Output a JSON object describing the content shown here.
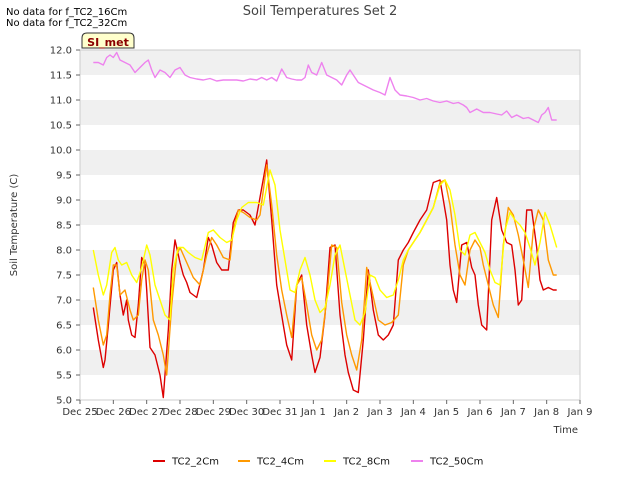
{
  "notes": [
    "No data for f_TC2_16Cm",
    "No data for f_TC2_32Cm"
  ],
  "badge": "SI_met",
  "chart_data": {
    "type": "line",
    "title": "Soil Temperatures Set 2",
    "xlabel": "Time",
    "ylabel": "Soil Temperature (C)",
    "ylim": [
      5.0,
      12.0
    ],
    "yticks": [
      5.0,
      5.5,
      6.0,
      6.5,
      7.0,
      7.5,
      8.0,
      8.5,
      9.0,
      9.5,
      10.0,
      10.5,
      11.0,
      11.5,
      12.0
    ],
    "xlim": [
      0,
      15
    ],
    "xticks": [
      0,
      1,
      2,
      3,
      4,
      5,
      6,
      7,
      8,
      9,
      10,
      11,
      12,
      13,
      14,
      15
    ],
    "xtick_labels": [
      "Dec 25",
      "Dec 26",
      "Dec 27",
      "Dec 28",
      "Dec 29",
      "Dec 30",
      "Dec 31",
      "Jan 1",
      "Jan 2",
      "Jan 3",
      "Jan 4",
      "Jan 5",
      "Jan 6",
      "Jan 7",
      "Jan 8",
      "Jan 9"
    ],
    "grid": "horizontal bands",
    "legend_position": "bottom",
    "series": [
      {
        "name": "TC2_2Cm",
        "color": "#dd0000",
        "x": [
          0.4,
          0.55,
          0.7,
          0.75,
          0.85,
          1.0,
          1.1,
          1.2,
          1.3,
          1.4,
          1.45,
          1.55,
          1.65,
          1.75,
          1.85,
          1.95,
          2.0,
          2.1,
          2.25,
          2.4,
          2.5,
          2.65,
          2.75,
          2.85,
          3.0,
          3.1,
          3.2,
          3.3,
          3.5,
          3.7,
          3.85,
          3.95,
          4.1,
          4.25,
          4.45,
          4.6,
          4.75,
          4.9,
          5.1,
          5.25,
          5.4,
          5.6,
          5.75,
          5.9,
          6.0,
          6.1,
          6.2,
          6.35,
          6.5,
          6.65,
          6.8,
          6.95,
          7.05,
          7.2,
          7.35,
          7.5,
          7.65,
          7.8,
          7.95,
          8.05,
          8.2,
          8.35,
          8.5,
          8.65,
          8.8,
          8.95,
          9.1,
          9.25,
          9.4,
          9.55,
          9.7,
          9.85,
          10.0,
          10.2,
          10.4,
          10.6,
          10.8,
          11.0,
          11.1,
          11.2,
          11.3,
          11.45,
          11.6,
          11.75,
          11.85,
          11.95,
          12.05,
          12.2,
          12.35,
          12.5,
          12.65,
          12.8,
          12.95,
          13.05,
          13.15,
          13.25,
          13.4,
          13.55,
          13.7,
          13.8,
          13.9,
          14.05,
          14.2,
          14.3
        ],
        "values": [
          6.85,
          6.2,
          5.65,
          5.8,
          6.5,
          7.6,
          7.75,
          7.1,
          6.7,
          7.0,
          6.6,
          6.3,
          6.25,
          6.9,
          7.85,
          7.7,
          7.2,
          6.05,
          5.9,
          5.5,
          5.05,
          6.4,
          7.6,
          8.2,
          7.75,
          7.5,
          7.35,
          7.15,
          7.05,
          7.6,
          8.25,
          8.1,
          7.75,
          7.6,
          7.6,
          8.55,
          8.8,
          8.8,
          8.7,
          8.5,
          9.05,
          9.8,
          8.6,
          7.3,
          6.9,
          6.5,
          6.1,
          5.8,
          7.3,
          7.5,
          6.5,
          5.9,
          5.55,
          5.85,
          6.7,
          8.05,
          8.1,
          6.7,
          5.9,
          5.55,
          5.2,
          5.15,
          6.2,
          7.6,
          6.8,
          6.3,
          6.2,
          6.3,
          6.5,
          7.8,
          8.0,
          8.15,
          8.35,
          8.6,
          8.8,
          9.35,
          9.4,
          8.6,
          7.7,
          7.2,
          6.95,
          8.1,
          8.15,
          7.65,
          7.5,
          6.9,
          6.5,
          6.4,
          8.6,
          9.05,
          8.4,
          8.15,
          8.1,
          7.6,
          6.9,
          7.0,
          8.8,
          8.8,
          8.05,
          7.4,
          7.2,
          7.25,
          7.2,
          7.2
        ]
      },
      {
        "name": "TC2_4Cm",
        "color": "#ff9900",
        "x": [
          0.4,
          0.55,
          0.7,
          0.8,
          0.9,
          1.0,
          1.1,
          1.2,
          1.35,
          1.5,
          1.6,
          1.75,
          1.85,
          1.95,
          2.05,
          2.2,
          2.35,
          2.5,
          2.6,
          2.75,
          2.9,
          3.0,
          3.2,
          3.4,
          3.6,
          3.8,
          3.95,
          4.1,
          4.3,
          4.5,
          4.6,
          4.75,
          4.9,
          5.1,
          5.3,
          5.4,
          5.6,
          5.75,
          5.9,
          6.05,
          6.2,
          6.35,
          6.5,
          6.65,
          6.8,
          6.95,
          7.1,
          7.25,
          7.4,
          7.55,
          7.7,
          7.85,
          8.0,
          8.15,
          8.3,
          8.45,
          8.6,
          8.75,
          8.95,
          9.15,
          9.35,
          9.55,
          9.7,
          9.85,
          10.0,
          10.2,
          10.4,
          10.6,
          10.8,
          10.95,
          11.1,
          11.25,
          11.4,
          11.55,
          11.7,
          11.85,
          12.0,
          12.1,
          12.25,
          12.4,
          12.55,
          12.7,
          12.85,
          13.0,
          13.15,
          13.3,
          13.45,
          13.6,
          13.75,
          13.9,
          14.05,
          14.2,
          14.3
        ],
        "values": [
          7.25,
          6.6,
          6.1,
          6.3,
          7.1,
          7.7,
          7.7,
          7.1,
          7.2,
          6.8,
          6.6,
          6.7,
          7.4,
          7.8,
          7.6,
          6.6,
          6.3,
          5.9,
          5.5,
          6.9,
          7.9,
          8.05,
          7.75,
          7.45,
          7.3,
          7.9,
          8.25,
          8.1,
          7.85,
          7.8,
          8.4,
          8.8,
          8.75,
          8.65,
          8.6,
          8.7,
          9.7,
          8.9,
          7.9,
          7.2,
          6.7,
          6.25,
          7.3,
          7.45,
          6.9,
          6.3,
          6.0,
          6.2,
          7.0,
          8.1,
          8.05,
          6.95,
          6.3,
          5.9,
          5.6,
          6.2,
          7.65,
          7.2,
          6.6,
          6.5,
          6.55,
          6.7,
          7.7,
          8.0,
          8.15,
          8.35,
          8.6,
          8.85,
          9.35,
          9.4,
          8.9,
          8.1,
          7.5,
          7.3,
          8.0,
          8.2,
          8.05,
          7.7,
          7.3,
          6.9,
          6.65,
          8.1,
          8.85,
          8.7,
          8.3,
          7.8,
          7.25,
          8.4,
          8.8,
          8.6,
          7.8,
          7.5,
          7.5
        ]
      },
      {
        "name": "TC2_8Cm",
        "color": "#ffff00",
        "x": [
          0.4,
          0.55,
          0.7,
          0.8,
          0.95,
          1.05,
          1.15,
          1.25,
          1.4,
          1.55,
          1.7,
          1.85,
          2.0,
          2.1,
          2.25,
          2.4,
          2.55,
          2.7,
          2.8,
          2.95,
          3.1,
          3.25,
          3.45,
          3.65,
          3.85,
          4.0,
          4.2,
          4.4,
          4.55,
          4.7,
          4.85,
          5.05,
          5.3,
          5.5,
          5.7,
          5.85,
          6.0,
          6.15,
          6.3,
          6.45,
          6.6,
          6.75,
          6.9,
          7.05,
          7.2,
          7.35,
          7.5,
          7.65,
          7.8,
          7.95,
          8.1,
          8.25,
          8.4,
          8.55,
          8.7,
          8.85,
          9.0,
          9.2,
          9.4,
          9.55,
          9.7,
          9.85,
          10.0,
          10.2,
          10.4,
          10.6,
          10.8,
          10.95,
          11.1,
          11.25,
          11.4,
          11.55,
          11.7,
          11.85,
          12.0,
          12.15,
          12.3,
          12.45,
          12.6,
          12.75,
          12.9,
          13.05,
          13.2,
          13.35,
          13.5,
          13.65,
          13.8,
          13.95,
          14.1,
          14.3
        ],
        "values": [
          8.0,
          7.5,
          7.1,
          7.3,
          7.95,
          8.05,
          7.8,
          7.7,
          7.75,
          7.5,
          7.35,
          7.65,
          8.1,
          7.9,
          7.3,
          7.0,
          6.7,
          6.6,
          7.6,
          8.05,
          8.05,
          7.95,
          7.85,
          7.8,
          8.35,
          8.4,
          8.25,
          8.15,
          8.2,
          8.6,
          8.85,
          8.95,
          8.95,
          8.9,
          9.6,
          9.3,
          8.4,
          7.8,
          7.2,
          7.15,
          7.6,
          7.85,
          7.5,
          7.0,
          6.75,
          6.85,
          7.3,
          7.9,
          8.1,
          7.6,
          7.1,
          6.6,
          6.5,
          6.75,
          7.5,
          7.45,
          7.2,
          7.05,
          7.1,
          7.4,
          7.8,
          8.0,
          8.15,
          8.35,
          8.6,
          8.85,
          9.3,
          9.4,
          9.2,
          8.7,
          8.0,
          7.9,
          8.3,
          8.35,
          8.15,
          7.95,
          7.6,
          7.35,
          7.3,
          8.4,
          8.75,
          8.6,
          8.5,
          8.35,
          8.05,
          7.7,
          8.15,
          8.75,
          8.5,
          8.05
        ]
      },
      {
        "name": "TC2_50Cm",
        "color": "#ee82ee",
        "x": [
          0.4,
          0.55,
          0.7,
          0.8,
          0.9,
          1.0,
          1.1,
          1.2,
          1.35,
          1.5,
          1.65,
          1.8,
          1.95,
          2.05,
          2.15,
          2.25,
          2.4,
          2.55,
          2.7,
          2.85,
          3.0,
          3.15,
          3.3,
          3.5,
          3.7,
          3.9,
          4.1,
          4.3,
          4.5,
          4.7,
          4.9,
          5.1,
          5.3,
          5.45,
          5.6,
          5.75,
          5.9,
          6.05,
          6.2,
          6.35,
          6.5,
          6.65,
          6.75,
          6.85,
          6.95,
          7.1,
          7.25,
          7.4,
          7.55,
          7.7,
          7.85,
          8.0,
          8.1,
          8.2,
          8.35,
          8.5,
          8.65,
          8.8,
          9.0,
          9.15,
          9.3,
          9.45,
          9.6,
          9.8,
          10.0,
          10.2,
          10.4,
          10.6,
          10.8,
          11.0,
          11.2,
          11.35,
          11.5,
          11.6,
          11.7,
          11.9,
          12.1,
          12.3,
          12.5,
          12.65,
          12.8,
          12.95,
          13.1,
          13.3,
          13.45,
          13.6,
          13.75,
          13.85,
          13.95,
          14.05,
          14.15,
          14.3
        ],
        "values": [
          11.75,
          11.75,
          11.7,
          11.85,
          11.9,
          11.85,
          11.95,
          11.8,
          11.75,
          11.7,
          11.55,
          11.65,
          11.75,
          11.8,
          11.6,
          11.45,
          11.6,
          11.55,
          11.45,
          11.6,
          11.65,
          11.5,
          11.45,
          11.42,
          11.4,
          11.43,
          11.38,
          11.4,
          11.4,
          11.4,
          11.38,
          11.42,
          11.4,
          11.45,
          11.4,
          11.45,
          11.38,
          11.62,
          11.45,
          11.42,
          11.4,
          11.4,
          11.45,
          11.7,
          11.55,
          11.5,
          11.75,
          11.5,
          11.45,
          11.4,
          11.3,
          11.5,
          11.6,
          11.5,
          11.35,
          11.3,
          11.25,
          11.2,
          11.15,
          11.1,
          11.45,
          11.2,
          11.1,
          11.08,
          11.05,
          11.0,
          11.03,
          10.98,
          10.95,
          10.98,
          10.93,
          10.95,
          10.9,
          10.85,
          10.75,
          10.82,
          10.75,
          10.75,
          10.72,
          10.7,
          10.78,
          10.65,
          10.7,
          10.63,
          10.65,
          10.6,
          10.55,
          10.7,
          10.75,
          10.85,
          10.6,
          10.6
        ]
      }
    ]
  }
}
